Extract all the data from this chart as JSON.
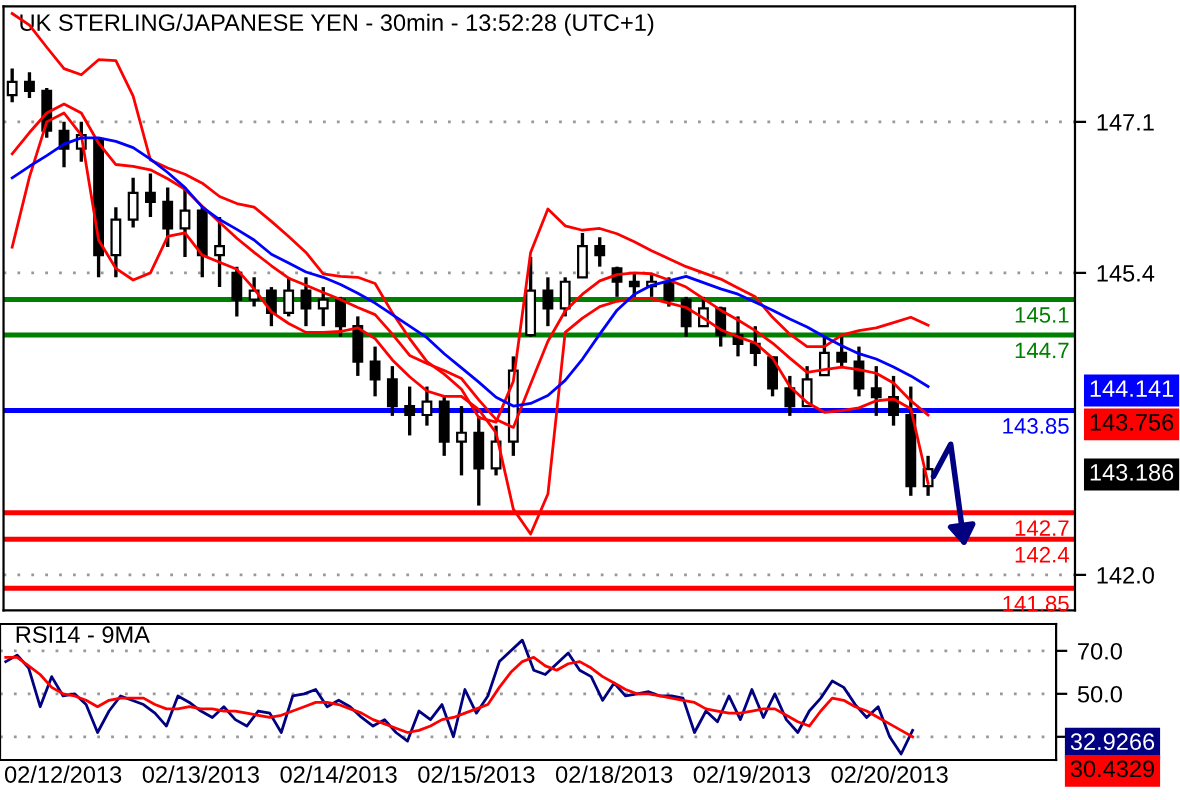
{
  "chart_data": [
    {
      "type": "candlestick",
      "title": "UK STERLING/JAPANESE YEN - 30min - 13:52:28 (UTC+1)",
      "categories": [
        null,
        null,
        null,
        null,
        null,
        null,
        null,
        null,
        null,
        null,
        null,
        null,
        null,
        null,
        null,
        null,
        null,
        null,
        null,
        null,
        null,
        null,
        null,
        null,
        null,
        null,
        null,
        null,
        null,
        null,
        null,
        null,
        null,
        null,
        null,
        null,
        null,
        null,
        null,
        null,
        null,
        null,
        null,
        null,
        null,
        null,
        null,
        null,
        null,
        null,
        null,
        null,
        null,
        null,
        null,
        null,
        null,
        null,
        null,
        null,
        null,
        null
      ],
      "ohlc": [
        [
          147.4,
          147.7,
          147.32,
          147.55
        ],
        [
          147.55,
          147.66,
          147.37,
          147.45
        ],
        [
          147.45,
          147.48,
          146.92,
          147.0
        ],
        [
          147.0,
          147.1,
          146.59,
          146.8
        ],
        [
          146.8,
          147.1,
          146.65,
          146.95
        ],
        [
          146.9,
          146.92,
          145.35,
          145.6
        ],
        [
          145.6,
          146.14,
          145.35,
          146.0
        ],
        [
          146.0,
          146.47,
          145.91,
          146.3
        ],
        [
          146.3,
          146.52,
          146.03,
          146.2
        ],
        [
          146.2,
          146.36,
          145.69,
          145.9
        ],
        [
          145.9,
          146.36,
          145.58,
          146.1
        ],
        [
          146.1,
          146.14,
          145.35,
          145.6
        ],
        [
          145.6,
          146.03,
          145.24,
          145.7
        ],
        [
          145.4,
          145.47,
          144.91,
          145.1
        ],
        [
          145.1,
          145.35,
          145.02,
          145.2
        ],
        [
          145.2,
          145.24,
          144.8,
          144.95
        ],
        [
          144.95,
          145.35,
          144.91,
          145.2
        ],
        [
          145.2,
          145.35,
          144.8,
          145.0
        ],
        [
          145.0,
          145.24,
          144.8,
          145.1
        ],
        [
          145.1,
          145.13,
          144.68,
          144.8
        ],
        [
          144.8,
          144.91,
          144.24,
          144.4
        ],
        [
          144.4,
          144.57,
          144.01,
          144.2
        ],
        [
          144.2,
          144.35,
          143.79,
          143.9
        ],
        [
          143.9,
          144.12,
          143.57,
          143.8
        ],
        [
          143.8,
          144.12,
          143.68,
          143.95
        ],
        [
          143.95,
          144.01,
          143.34,
          143.5
        ],
        [
          143.5,
          143.9,
          143.12,
          143.6
        ],
        [
          143.6,
          143.79,
          142.78,
          143.2
        ],
        [
          143.2,
          143.68,
          143.12,
          143.5
        ],
        [
          143.5,
          144.46,
          143.34,
          144.3
        ],
        [
          144.7,
          145.58,
          144.68,
          145.2
        ],
        [
          145.2,
          145.35,
          144.8,
          145.0
        ],
        [
          145.0,
          145.35,
          144.91,
          145.3
        ],
        [
          145.35,
          145.85,
          145.35,
          145.7
        ],
        [
          145.7,
          145.8,
          145.47,
          145.6
        ],
        [
          145.45,
          145.47,
          145.13,
          145.3
        ],
        [
          145.3,
          145.4,
          145.13,
          145.25
        ],
        [
          145.25,
          145.4,
          145.13,
          145.3
        ],
        [
          145.3,
          145.35,
          145.02,
          145.1
        ],
        [
          145.1,
          145.13,
          144.68,
          144.8
        ],
        [
          144.8,
          145.13,
          144.8,
          145.0
        ],
        [
          145.0,
          145.02,
          144.57,
          144.7
        ],
        [
          144.7,
          144.91,
          144.46,
          144.6
        ],
        [
          144.6,
          144.8,
          144.35,
          144.5
        ],
        [
          144.45,
          144.46,
          144.01,
          144.1
        ],
        [
          144.1,
          144.24,
          143.79,
          143.9
        ],
        [
          143.9,
          144.35,
          143.9,
          144.2
        ],
        [
          144.25,
          144.68,
          144.24,
          144.5
        ],
        [
          144.5,
          144.68,
          144.35,
          144.4
        ],
        [
          144.4,
          144.57,
          144.01,
          144.1
        ],
        [
          144.1,
          144.35,
          143.79,
          144.0
        ],
        [
          144.0,
          144.24,
          143.68,
          143.8
        ],
        [
          143.8,
          144.12,
          142.89,
          143.0
        ],
        [
          143.0,
          143.34,
          142.89,
          143.19
        ],
        null,
        null,
        null,
        null,
        null,
        null,
        null,
        null
      ],
      "series": [
        {
          "type": "line",
          "color": "#ff0000",
          "values": [
            148.32,
            148.19,
            147.94,
            147.7,
            147.63,
            147.8,
            147.79,
            147.39,
            146.67,
            146.58,
            146.51,
            146.41,
            146.26,
            146.18,
            146.14,
            145.98,
            145.81,
            145.63,
            145.39,
            145.36,
            145.35,
            145.28,
            144.95,
            144.66,
            144.4,
            144.26,
            144.09,
            143.77,
            143.72,
            144.18,
            145.63,
            146.12,
            145.93,
            145.88,
            145.9,
            145.84,
            145.75,
            145.65,
            145.56,
            145.47,
            145.4,
            145.33,
            145.23,
            145.13,
            144.9,
            144.71,
            144.57,
            144.57,
            144.7,
            144.75,
            144.78,
            144.84,
            144.9,
            144.81,
            null,
            null,
            null,
            null,
            null,
            null,
            null,
            null
          ]
        },
        {
          "type": "line",
          "color": "#ff0000",
          "values": [
            145.69,
            146.48,
            147.1,
            147.2,
            146.95,
            145.77,
            145.45,
            145.32,
            145.4,
            145.81,
            145.85,
            145.6,
            145.52,
            145.44,
            145.22,
            144.96,
            144.83,
            144.73,
            144.73,
            144.74,
            144.78,
            144.66,
            144.42,
            144.23,
            144.07,
            144.01,
            144.01,
            143.86,
            143.6,
            142.74,
            142.46,
            142.91,
            144.73,
            144.89,
            145.02,
            145.08,
            145.11,
            145.11,
            145.06,
            145.01,
            144.89,
            144.76,
            144.68,
            144.61,
            144.44,
            144.12,
            143.94,
            143.83,
            143.85,
            143.88,
            143.96,
            143.98,
            143.87,
            143.03,
            null,
            null,
            null,
            null,
            null,
            null,
            null,
            null
          ]
        },
        {
          "type": "line",
          "color": "#ff0000",
          "values": [
            146.74,
            146.98,
            147.2,
            147.3,
            147.2,
            146.86,
            146.62,
            146.6,
            146.56,
            146.46,
            146.34,
            146.15,
            145.97,
            145.79,
            145.63,
            145.48,
            145.34,
            145.26,
            145.18,
            145.1,
            145.01,
            144.93,
            144.71,
            144.47,
            144.38,
            144.3,
            144.21,
            143.97,
            143.75,
            143.66,
            144.15,
            144.63,
            144.97,
            145.16,
            145.31,
            145.38,
            145.4,
            145.39,
            145.32,
            145.24,
            145.11,
            144.98,
            144.87,
            144.75,
            144.61,
            144.44,
            144.28,
            144.31,
            144.34,
            144.31,
            144.27,
            144.16,
            143.96,
            143.8,
            null,
            null,
            null,
            null,
            null,
            null,
            null,
            null
          ]
        },
        {
          "type": "line",
          "color": "#0000ff",
          "values": [
            146.47,
            146.6,
            146.72,
            146.85,
            146.92,
            146.92,
            146.88,
            146.81,
            146.68,
            146.53,
            146.36,
            146.14,
            146.0,
            145.89,
            145.77,
            145.61,
            145.51,
            145.41,
            145.35,
            145.27,
            145.17,
            145.06,
            144.93,
            144.8,
            144.67,
            144.49,
            144.33,
            144.17,
            144.0,
            143.9,
            143.93,
            144.02,
            144.19,
            144.43,
            144.71,
            144.98,
            145.16,
            145.26,
            145.31,
            145.36,
            145.29,
            145.22,
            145.16,
            145.07,
            144.98,
            144.88,
            144.79,
            144.68,
            144.58,
            144.49,
            144.43,
            144.34,
            144.24,
            144.12,
            null,
            null,
            null,
            null,
            null,
            null,
            null,
            null
          ]
        }
      ],
      "ylim": [
        141.6,
        148.4
      ],
      "yticks": [
        {
          "value": 142,
          "label": "142.0"
        },
        {
          "value": 145.4,
          "label": "145.4"
        },
        {
          "value": 147.1,
          "label": "147.1"
        }
      ],
      "tick_labels": "y",
      "grid": "y",
      "ref_lines": [
        {
          "axis": "y",
          "value": 145.1,
          "label": "145.1",
          "color": "#008000"
        },
        {
          "axis": "y",
          "value": 144.7,
          "label": "144.7",
          "color": "#008000"
        },
        {
          "axis": "y",
          "value": 143.85,
          "label": "143.85",
          "color": "#0000ff"
        },
        {
          "axis": "y",
          "value": 142.7,
          "label": "142.7",
          "color": "#ff0000"
        },
        {
          "axis": "y",
          "value": 142.4,
          "label": "142.4",
          "color": "#ff0000"
        },
        {
          "axis": "y",
          "value": 141.85,
          "label": "141.85",
          "color": "#ff0000"
        }
      ],
      "annotations": [
        "144.141",
        "143.756",
        "143.186"
      ]
    },
    {
      "type": "line",
      "title": "RSI14 - 9MA",
      "categories": [
        null,
        null,
        null,
        null,
        null,
        "02/12/2013",
        null,
        null,
        null,
        null,
        null,
        null,
        null,
        null,
        null,
        null,
        null,
        "02/13/2013",
        null,
        null,
        null,
        null,
        null,
        null,
        null,
        null,
        null,
        null,
        null,
        "02/14/2013",
        null,
        null,
        null,
        null,
        null,
        null,
        null,
        null,
        null,
        null,
        null,
        "02/15/2013",
        null,
        null,
        null,
        null,
        null,
        null,
        null,
        null,
        null,
        null,
        null,
        "02/18/2013",
        null,
        null,
        null,
        null,
        null,
        null,
        null,
        null,
        null,
        null,
        null,
        "02/19/2013",
        null,
        null,
        null,
        null,
        null,
        null,
        null,
        null,
        null,
        null,
        null,
        "02/20/2013",
        null,
        null,
        null,
        null,
        null,
        null,
        null,
        null,
        null,
        null,
        null,
        null,
        null,
        null
      ],
      "series": [
        {
          "color": "#000080",
          "values": [
            65,
            68,
            62,
            44,
            58,
            49,
            50,
            45,
            32,
            42,
            49,
            47,
            45,
            41,
            35,
            49,
            46,
            42,
            39,
            44,
            38,
            35,
            42,
            41,
            32,
            49,
            50,
            52,
            44,
            47,
            44,
            39,
            35,
            38,
            32,
            28,
            42,
            38,
            45,
            30,
            52,
            41,
            49,
            65,
            70,
            75,
            61,
            59,
            64,
            69,
            61,
            58,
            47,
            55,
            49,
            50,
            51,
            49,
            49,
            48,
            32,
            42,
            37,
            49,
            38,
            52,
            39,
            50,
            38,
            32,
            42,
            48,
            56,
            53,
            45,
            39,
            44,
            30,
            22,
            33,
            null,
            null,
            null,
            null,
            null,
            null,
            null,
            null,
            null,
            null,
            null,
            null
          ]
        },
        {
          "color": "#ff0000",
          "values": [
            67,
            67,
            63,
            59,
            53,
            50,
            49,
            47,
            44,
            47,
            48,
            48,
            48,
            45,
            43,
            43,
            44,
            43,
            43,
            42,
            42,
            41,
            40,
            39,
            40,
            42,
            44,
            46,
            46,
            45,
            43,
            41,
            38,
            36,
            34,
            32,
            33,
            35,
            38,
            39,
            41,
            43,
            45,
            53,
            60,
            65,
            67,
            63,
            61,
            64,
            65,
            62,
            58,
            55,
            52,
            50,
            50,
            49,
            48,
            47,
            46,
            43,
            42,
            41,
            41,
            42,
            43,
            43,
            40,
            37,
            35,
            42,
            48,
            47,
            44,
            42,
            39,
            36,
            33,
            30,
            null,
            null,
            null,
            null,
            null,
            null,
            null,
            null,
            null,
            null,
            null,
            null
          ]
        }
      ],
      "ylim": [
        19.2,
        82.5
      ],
      "yticks": [
        {
          "value": 30,
          "label": null
        },
        {
          "value": 50,
          "label": "50.0"
        },
        {
          "value": 70,
          "label": "70.0"
        }
      ],
      "grid": "y",
      "annotations": [
        "32.9266",
        "30.4329"
      ]
    }
  ]
}
